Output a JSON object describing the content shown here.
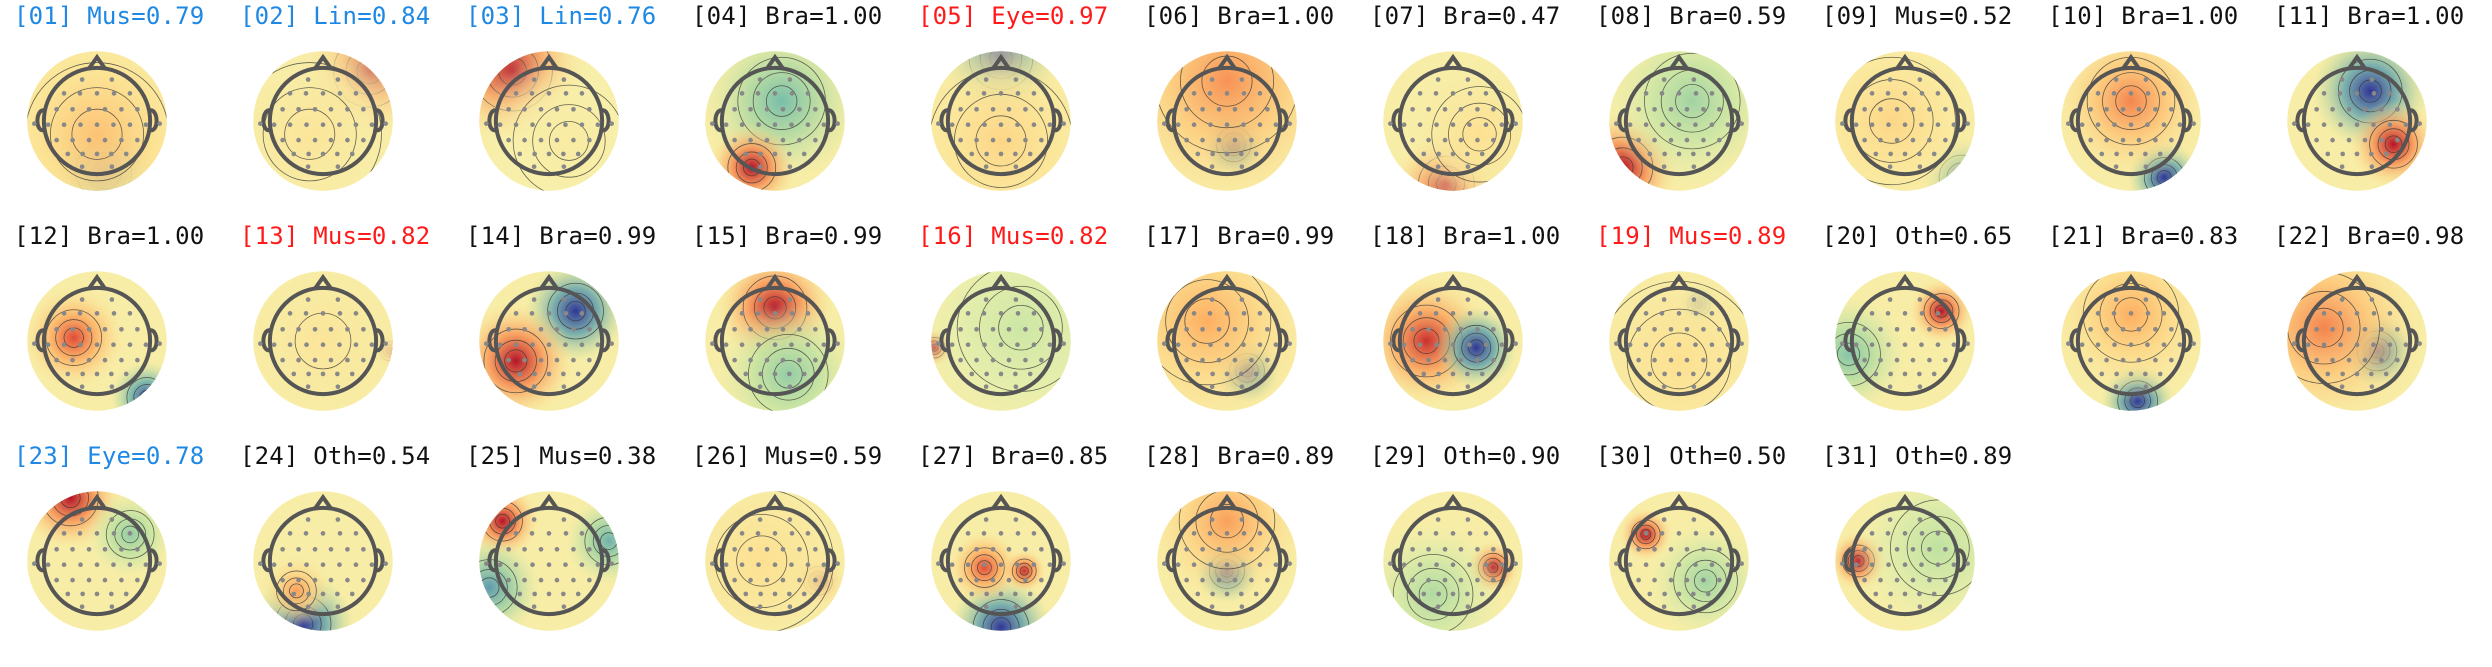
{
  "title_colors": {
    "black": "#111111",
    "red": "#ff1a1a",
    "blue": "#1e88e5"
  },
  "components": [
    {
      "label": "[01] Mus=0.79",
      "color": "blue",
      "blobs": [
        {
          "u": 0.1,
          "v": 0.75,
          "s": 0.35,
          "h": -1.0
        },
        {
          "u": 0.0,
          "v": 0.2,
          "s": 0.9,
          "h": 0.35
        }
      ]
    },
    {
      "label": "[02] Lin=0.84",
      "color": "blue",
      "blobs": [
        {
          "u": 0.7,
          "v": -0.75,
          "s": 0.45,
          "h": 1.0
        },
        {
          "u": -0.2,
          "v": 0.2,
          "s": 0.9,
          "h": 0.15
        }
      ]
    },
    {
      "label": "[03] Lin=0.76",
      "color": "blue",
      "blobs": [
        {
          "u": -0.55,
          "v": -0.75,
          "s": 0.5,
          "h": 1.0
        },
        {
          "u": 0.3,
          "v": 0.3,
          "s": 0.7,
          "h": 0.1
        }
      ]
    },
    {
      "label": "[04] Bra=1.00",
      "color": "black",
      "blobs": [
        {
          "u": 0.1,
          "v": -0.3,
          "s": 0.55,
          "h": -0.45
        },
        {
          "u": -0.35,
          "v": 0.7,
          "s": 0.3,
          "h": 1.0
        }
      ]
    },
    {
      "label": "[05] Eye=0.97",
      "color": "red",
      "blobs": [
        {
          "u": 0.0,
          "v": -0.95,
          "s": 0.4,
          "h": -1.0
        },
        {
          "u": 0.0,
          "v": 0.3,
          "s": 0.9,
          "h": 0.25
        }
      ]
    },
    {
      "label": "[06] Bra=1.00",
      "color": "black",
      "blobs": [
        {
          "u": 0.1,
          "v": 0.35,
          "s": 0.22,
          "h": -1.0
        },
        {
          "u": 0.0,
          "v": -0.6,
          "s": 0.9,
          "h": 0.55
        }
      ]
    },
    {
      "label": "[07] Bra=0.47",
      "color": "black",
      "blobs": [
        {
          "u": -0.1,
          "v": 0.95,
          "s": 0.35,
          "h": 1.0
        },
        {
          "u": 0.4,
          "v": 0.2,
          "s": 0.6,
          "h": 0.2
        }
      ]
    },
    {
      "label": "[08] Bra=0.59",
      "color": "black",
      "blobs": [
        {
          "u": -0.85,
          "v": 0.7,
          "s": 0.38,
          "h": 1.0
        },
        {
          "u": 0.2,
          "v": -0.3,
          "s": 0.6,
          "h": -0.3
        }
      ]
    },
    {
      "label": "[09] Mus=0.52",
      "color": "black",
      "blobs": [
        {
          "u": 0.85,
          "v": 0.85,
          "s": 0.28,
          "h": -0.7
        },
        {
          "u": -0.2,
          "v": 0.0,
          "s": 0.8,
          "h": 0.25
        }
      ]
    },
    {
      "label": "[10] Bra=1.00",
      "color": "black",
      "blobs": [
        {
          "u": 0.5,
          "v": 0.85,
          "s": 0.25,
          "h": -1.0
        },
        {
          "u": 0.0,
          "v": -0.3,
          "s": 0.55,
          "h": 0.6
        }
      ]
    },
    {
      "label": "[11] Bra=1.00",
      "color": "black",
      "blobs": [
        {
          "u": 0.2,
          "v": -0.45,
          "s": 0.4,
          "h": -1.0
        },
        {
          "u": 0.55,
          "v": 0.35,
          "s": 0.3,
          "h": 1.0
        }
      ]
    },
    {
      "label": "[12] Bra=1.00",
      "color": "black",
      "blobs": [
        {
          "u": -0.35,
          "v": -0.05,
          "s": 0.35,
          "h": 0.8
        },
        {
          "u": 0.75,
          "v": 0.85,
          "s": 0.25,
          "h": -0.9
        }
      ]
    },
    {
      "label": "[13] Mus=0.82",
      "color": "red",
      "blobs": [
        {
          "u": 1.0,
          "v": 0.15,
          "s": 0.12,
          "h": 1.0
        },
        {
          "u": 0.0,
          "v": 0.0,
          "s": 1.0,
          "h": 0.15
        }
      ]
    },
    {
      "label": "[14] Bra=0.99",
      "color": "black",
      "blobs": [
        {
          "u": 0.4,
          "v": -0.45,
          "s": 0.35,
          "h": -1.0
        },
        {
          "u": -0.5,
          "v": 0.3,
          "s": 0.4,
          "h": 1.0
        }
      ]
    },
    {
      "label": "[15] Bra=0.99",
      "color": "black",
      "blobs": [
        {
          "u": 0.0,
          "v": -0.5,
          "s": 0.4,
          "h": 1.0
        },
        {
          "u": 0.2,
          "v": 0.5,
          "s": 0.5,
          "h": -0.35
        }
      ]
    },
    {
      "label": "[16] Mus=0.82",
      "color": "red",
      "blobs": [
        {
          "u": -1.0,
          "v": 0.1,
          "s": 0.13,
          "h": 1.0
        },
        {
          "u": 0.3,
          "v": -0.2,
          "s": 0.8,
          "h": -0.15
        }
      ]
    },
    {
      "label": "[17] Bra=0.99",
      "color": "black",
      "blobs": [
        {
          "u": 0.3,
          "v": 0.45,
          "s": 0.22,
          "h": -1.0
        },
        {
          "u": -0.3,
          "v": -0.3,
          "s": 0.8,
          "h": 0.45
        }
      ]
    },
    {
      "label": "[18] Bra=1.00",
      "color": "black",
      "blobs": [
        {
          "u": -0.4,
          "v": 0.0,
          "s": 0.45,
          "h": 0.9
        },
        {
          "u": 0.35,
          "v": 0.1,
          "s": 0.28,
          "h": -1.0
        }
      ]
    },
    {
      "label": "[19] Mus=0.89",
      "color": "red",
      "blobs": [
        {
          "u": 0.3,
          "v": -0.55,
          "s": 0.14,
          "h": -1.0
        },
        {
          "u": 0.0,
          "v": 0.3,
          "s": 1.0,
          "h": 0.2
        }
      ]
    },
    {
      "label": "[20] Oth=0.65",
      "color": "black",
      "blobs": [
        {
          "u": 0.55,
          "v": -0.45,
          "s": 0.22,
          "h": 1.0
        },
        {
          "u": -0.85,
          "v": 0.2,
          "s": 0.4,
          "h": -0.4
        }
      ]
    },
    {
      "label": "[21] Bra=0.83",
      "color": "black",
      "blobs": [
        {
          "u": 0.1,
          "v": 0.9,
          "s": 0.25,
          "h": -1.0
        },
        {
          "u": 0.0,
          "v": -0.4,
          "s": 0.6,
          "h": 0.45
        }
      ]
    },
    {
      "label": "[22] Bra=0.98",
      "color": "black",
      "blobs": [
        {
          "u": 0.3,
          "v": 0.15,
          "s": 0.25,
          "h": -1.0
        },
        {
          "u": -0.5,
          "v": -0.2,
          "s": 0.7,
          "h": 0.6
        }
      ]
    },
    {
      "label": "[23] Eye=0.78",
      "color": "blue",
      "blobs": [
        {
          "u": -0.4,
          "v": -0.95,
          "s": 0.35,
          "h": 1.0
        },
        {
          "u": 0.5,
          "v": -0.4,
          "s": 0.3,
          "h": -0.35
        }
      ]
    },
    {
      "label": "[24] Oth=0.54",
      "color": "black",
      "blobs": [
        {
          "u": -0.3,
          "v": 0.95,
          "s": 0.35,
          "h": -1.0
        },
        {
          "u": -0.4,
          "v": 0.45,
          "s": 0.25,
          "h": 0.5
        }
      ]
    },
    {
      "label": "[25] Mus=0.38",
      "color": "black",
      "blobs": [
        {
          "u": -0.7,
          "v": -0.6,
          "s": 0.25,
          "h": 1.0
        },
        {
          "u": -0.9,
          "v": 0.4,
          "s": 0.35,
          "h": -0.6
        },
        {
          "u": 0.9,
          "v": -0.3,
          "s": 0.3,
          "h": -0.5
        }
      ]
    },
    {
      "label": "[26] Mus=0.59",
      "color": "black",
      "blobs": [
        {
          "u": 0.65,
          "v": 0.3,
          "s": 0.18,
          "h": 1.0
        },
        {
          "u": -0.2,
          "v": 0.0,
          "s": 0.9,
          "h": 0.2
        }
      ]
    },
    {
      "label": "[27] Bra=0.85",
      "color": "black",
      "blobs": [
        {
          "u": 0.0,
          "v": 1.0,
          "s": 0.35,
          "h": -1.0
        },
        {
          "u": -0.25,
          "v": 0.1,
          "s": 0.25,
          "h": 0.8
        },
        {
          "u": 0.35,
          "v": 0.15,
          "s": 0.15,
          "h": 0.9
        }
      ]
    },
    {
      "label": "[28] Bra=0.89",
      "color": "black",
      "blobs": [
        {
          "u": 0.0,
          "v": 0.15,
          "s": 0.22,
          "h": -1.0
        },
        {
          "u": 0.0,
          "v": -0.6,
          "s": 0.6,
          "h": 0.5
        }
      ]
    },
    {
      "label": "[29] Oth=0.90",
      "color": "black",
      "blobs": [
        {
          "u": 0.6,
          "v": 0.1,
          "s": 0.18,
          "h": 1.0
        },
        {
          "u": -0.3,
          "v": 0.5,
          "s": 0.5,
          "h": -0.25
        }
      ]
    },
    {
      "label": "[30] Oth=0.50",
      "color": "black",
      "blobs": [
        {
          "u": -0.5,
          "v": -0.4,
          "s": 0.18,
          "h": 1.0
        },
        {
          "u": 0.4,
          "v": 0.3,
          "s": 0.4,
          "h": -0.3
        }
      ]
    },
    {
      "label": "[31] Oth=0.89",
      "color": "black",
      "blobs": [
        {
          "u": -0.7,
          "v": 0.0,
          "s": 0.2,
          "h": 1.0
        },
        {
          "u": 0.5,
          "v": -0.2,
          "s": 0.6,
          "h": -0.2
        }
      ]
    }
  ]
}
